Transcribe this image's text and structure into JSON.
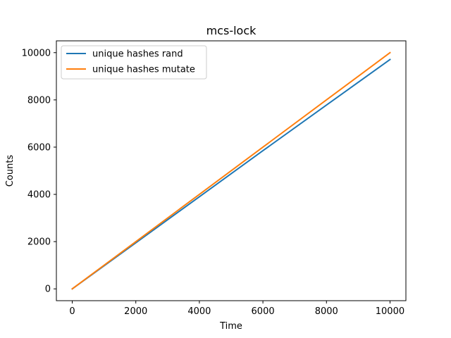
{
  "chart_data": {
    "type": "line",
    "title": "mcs-lock",
    "xlabel": "Time",
    "ylabel": "Counts",
    "xlim": [
      -500,
      10500
    ],
    "ylim": [
      -500,
      10500
    ],
    "xticks": [
      0,
      2000,
      4000,
      6000,
      8000,
      10000
    ],
    "yticks": [
      0,
      2000,
      4000,
      6000,
      8000,
      10000
    ],
    "grid": false,
    "legend_position": "top-left",
    "series": [
      {
        "name": "unique hashes rand",
        "color": "#1f77b4",
        "x": [
          0,
          2000,
          4000,
          6000,
          8000,
          10000
        ],
        "y": [
          0,
          1950,
          3900,
          5850,
          7780,
          9710
        ]
      },
      {
        "name": "unique hashes mutate",
        "color": "#ff7f0e",
        "x": [
          0,
          2000,
          4000,
          6000,
          8000,
          10000
        ],
        "y": [
          0,
          2000,
          4000,
          6000,
          8000,
          10000
        ]
      }
    ]
  }
}
